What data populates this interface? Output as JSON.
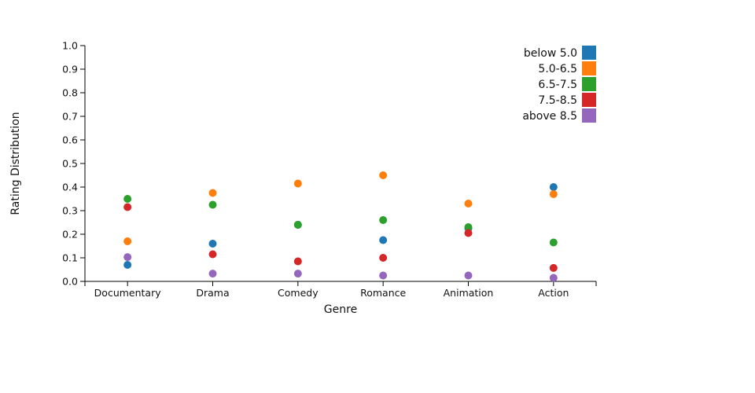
{
  "chart_data": {
    "type": "scatter",
    "title": "",
    "xlabel": "Genre",
    "ylabel": "Rating Distribution",
    "categories": [
      "Documentary",
      "Drama",
      "Comedy",
      "Romance",
      "Animation",
      "Action"
    ],
    "ylim": [
      0,
      1
    ],
    "yticks": [
      "0.0",
      "0.1",
      "0.2",
      "0.3",
      "0.4",
      "0.5",
      "0.6",
      "0.7",
      "0.8",
      "0.9",
      "1.0"
    ],
    "grid": false,
    "legend_position": "top-right",
    "series": [
      {
        "name": "below 5.0",
        "color": "#1f77b4",
        "values": [
          0.07,
          0.16,
          0.24,
          0.175,
          0.225,
          0.4
        ]
      },
      {
        "name": "5.0-6.5",
        "color": "#ff7f0e",
        "values": [
          0.17,
          0.375,
          0.415,
          0.45,
          0.33,
          0.37
        ]
      },
      {
        "name": "6.5-7.5",
        "color": "#2ca02c",
        "values": [
          0.35,
          0.325,
          0.24,
          0.26,
          0.23,
          0.165
        ]
      },
      {
        "name": "7.5-8.5",
        "color": "#d62728",
        "values": [
          0.315,
          0.115,
          0.085,
          0.1,
          0.205,
          0.057
        ]
      },
      {
        "name": "above 8.5",
        "color": "#9467bd",
        "values": [
          0.103,
          0.033,
          0.033,
          0.025,
          0.025,
          0.015
        ]
      }
    ]
  }
}
